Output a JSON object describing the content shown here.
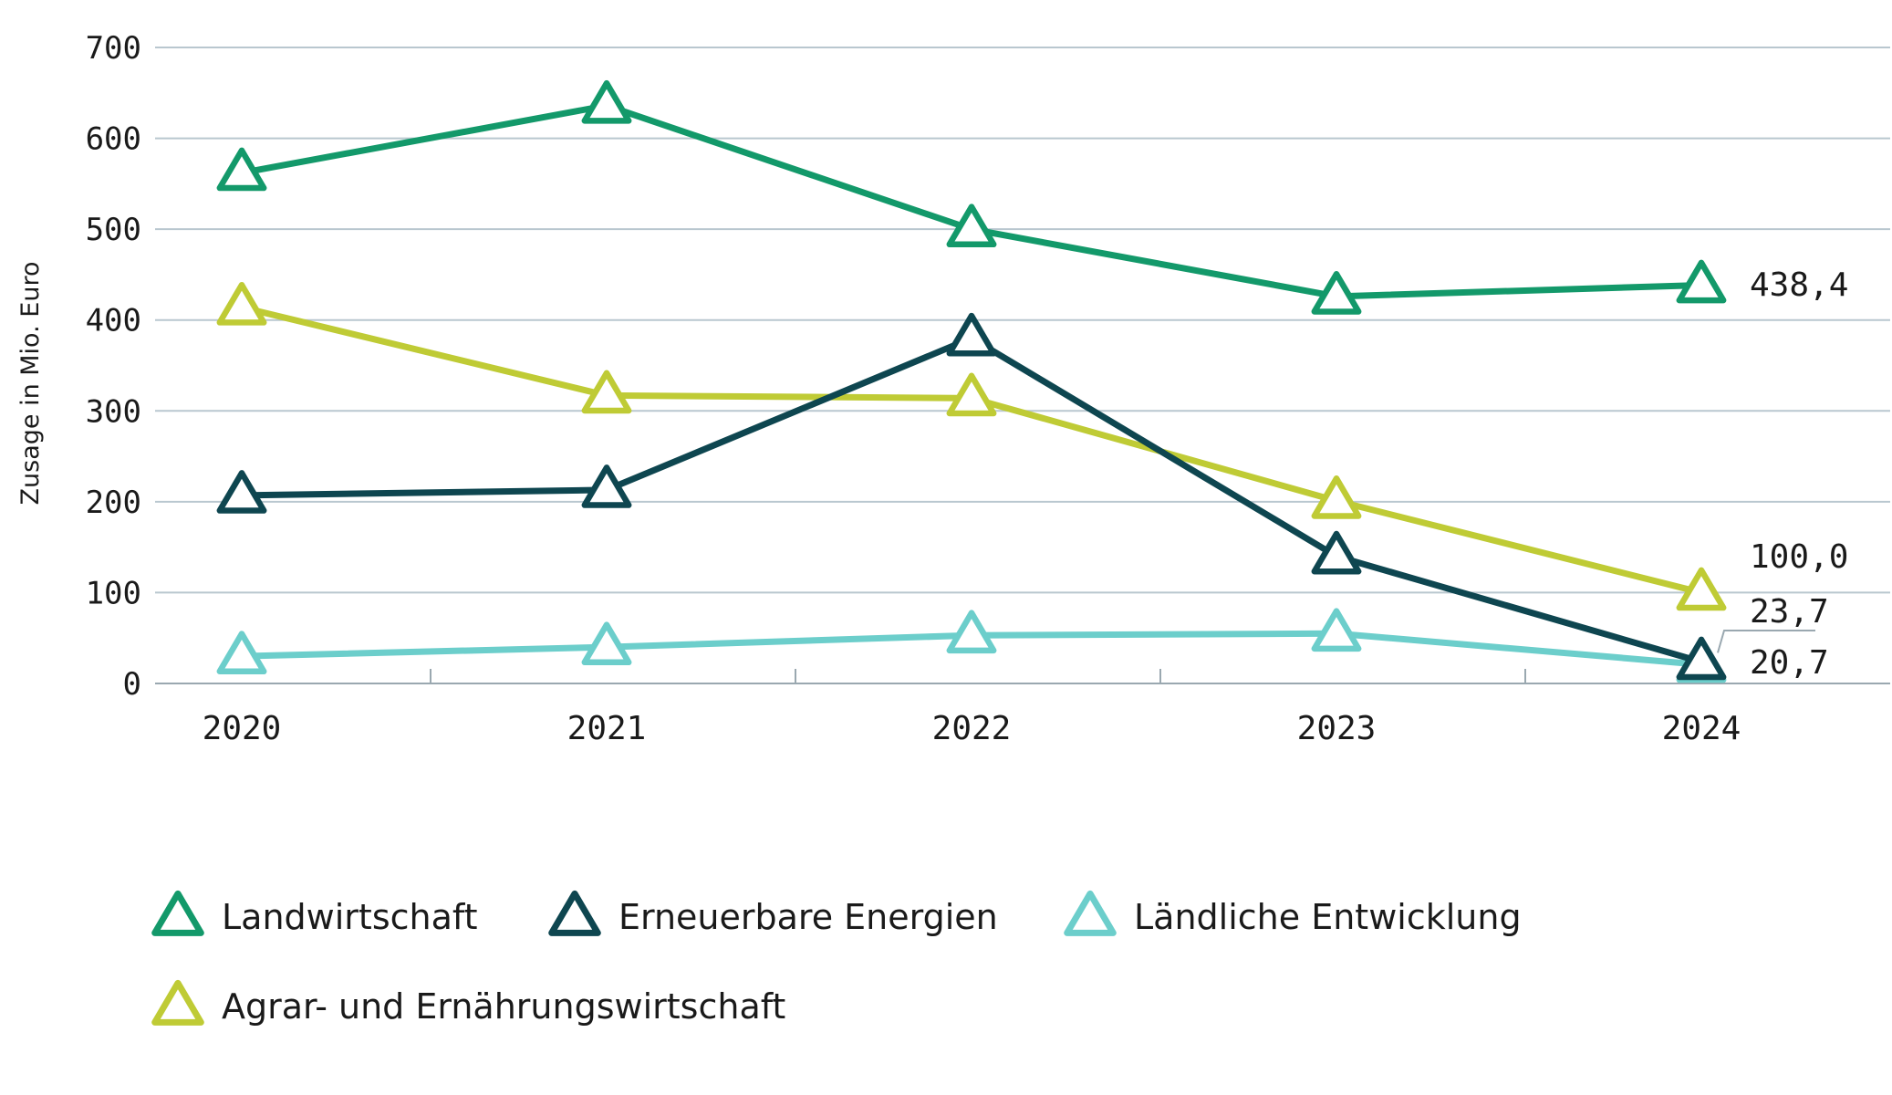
{
  "chart_data": {
    "type": "line",
    "title": "",
    "xlabel": "",
    "ylabel": "Zusage in Mio. Euro",
    "categories": [
      "2020",
      "2021",
      "2022",
      "2023",
      "2024"
    ],
    "ylim": [
      0,
      700
    ],
    "yticks": [
      "0",
      "100",
      "200",
      "300",
      "400",
      "500",
      "600",
      "700"
    ],
    "grid": true,
    "legend_position": "bottom",
    "series": [
      {
        "name": "Landwirtschaft",
        "color": "#13996a",
        "values": [
          562,
          636,
          500,
          426,
          438.4
        ],
        "end_label": "438,4"
      },
      {
        "name": "Erneuerbare Energien",
        "color": "#0e4650",
        "values": [
          207,
          213,
          380,
          140,
          23.7
        ],
        "end_label": "23,7"
      },
      {
        "name": "Ländliche Entwicklung",
        "color": "#6ccecb",
        "values": [
          30,
          40,
          53,
          55,
          20.7
        ],
        "end_label": "20,7"
      },
      {
        "name": "Agrar- und Ernährungswirtschaft",
        "color": "#bfcb35",
        "values": [
          414,
          317,
          314,
          201,
          100.0
        ],
        "end_label": "100,0"
      }
    ],
    "marker": "triangle"
  }
}
